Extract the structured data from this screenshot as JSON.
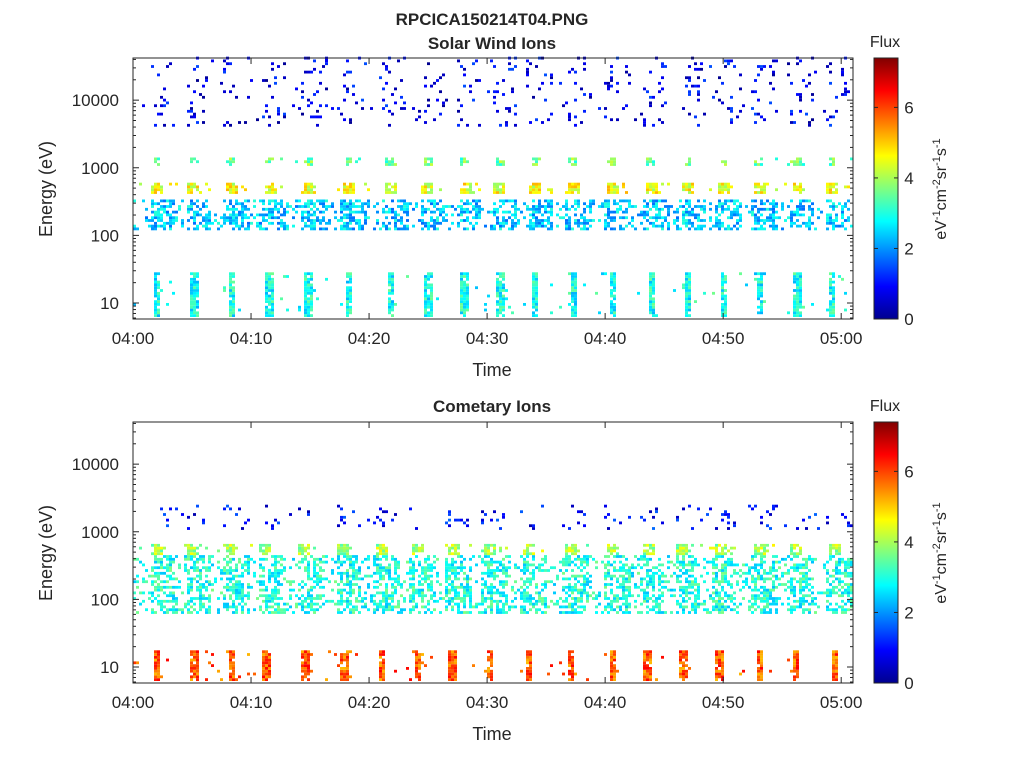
{
  "figure": {
    "title": "RPCICA150214T04.PNG"
  },
  "chart_data": [
    {
      "type": "heatmap",
      "title": "Solar Wind Ions",
      "xlabel": "Time",
      "ylabel": "Energy (eV)",
      "x_range_minutes": [
        0,
        61
      ],
      "y_range": [
        5.8,
        42000
      ],
      "y_scale": "log",
      "x_ticks": [
        "04:00",
        "04:10",
        "04:20",
        "04:30",
        "04:40",
        "04:50",
        "05:00"
      ],
      "y_ticks": [
        "10",
        "100",
        "1000",
        "10000"
      ],
      "colorbar": {
        "label": "Flux",
        "unit": "eV-1cm-2sr-1s-1",
        "range": [
          0,
          7.4
        ],
        "ticks": [
          "0",
          "2",
          "4",
          "6"
        ]
      },
      "grid": false,
      "colormap": "jet",
      "sweep_starts_minutes": [
        2.0,
        5.1,
        8.3,
        11.5,
        14.8,
        18.2,
        21.7,
        24.9,
        28.0,
        31.0,
        34.0,
        37.2,
        40.5,
        43.8,
        47.0,
        50.0,
        53.0,
        56.2,
        59.2
      ],
      "bands": [
        {
          "name": "high-energy",
          "e_min": 4000,
          "e_max": 40000,
          "value": 0.8
        },
        {
          "name": "keV",
          "e_min": 1000,
          "e_max": 1300,
          "value": 3.6
        },
        {
          "name": "main-peak",
          "e_min": 380,
          "e_max": 600,
          "value": 4.5
        },
        {
          "name": "mid-energy",
          "e_min": 110,
          "e_max": 320,
          "value": 2.4
        },
        {
          "name": "low-energy",
          "e_min": 6,
          "e_max": 28,
          "value": 2.9
        }
      ]
    },
    {
      "type": "heatmap",
      "title": "Cometary Ions",
      "xlabel": "Time",
      "ylabel": "Energy (eV)",
      "x_range_minutes": [
        0,
        61
      ],
      "y_range": [
        5.8,
        42000
      ],
      "y_scale": "log",
      "x_ticks": [
        "04:00",
        "04:10",
        "04:20",
        "04:30",
        "04:40",
        "04:50",
        "05:00"
      ],
      "y_ticks": [
        "10",
        "100",
        "1000",
        "10000"
      ],
      "colorbar": {
        "label": "Flux",
        "unit": "eV-1cm-2sr-1s-1",
        "range": [
          0,
          7.4
        ],
        "ticks": [
          "0",
          "2",
          "4",
          "6"
        ]
      },
      "grid": false,
      "colormap": "jet",
      "sweep_starts_minutes": [
        2.0,
        5.1,
        8.3,
        11.2,
        14.5,
        17.8,
        21.0,
        24.0,
        27.0,
        30.2,
        33.5,
        37.0,
        40.5,
        43.5,
        46.5,
        49.6,
        53.0,
        56.0,
        59.3
      ],
      "bands": [
        {
          "name": "sparse-high",
          "e_min": 1000,
          "e_max": 2500,
          "value": 1.0
        },
        {
          "name": "main-peak",
          "e_min": 420,
          "e_max": 620,
          "value": 4.0
        },
        {
          "name": "mid-energy",
          "e_min": 60,
          "e_max": 420,
          "value": 3.0
        },
        {
          "name": "low-energy",
          "e_min": 6,
          "e_max": 17,
          "value": 5.8
        }
      ]
    }
  ]
}
